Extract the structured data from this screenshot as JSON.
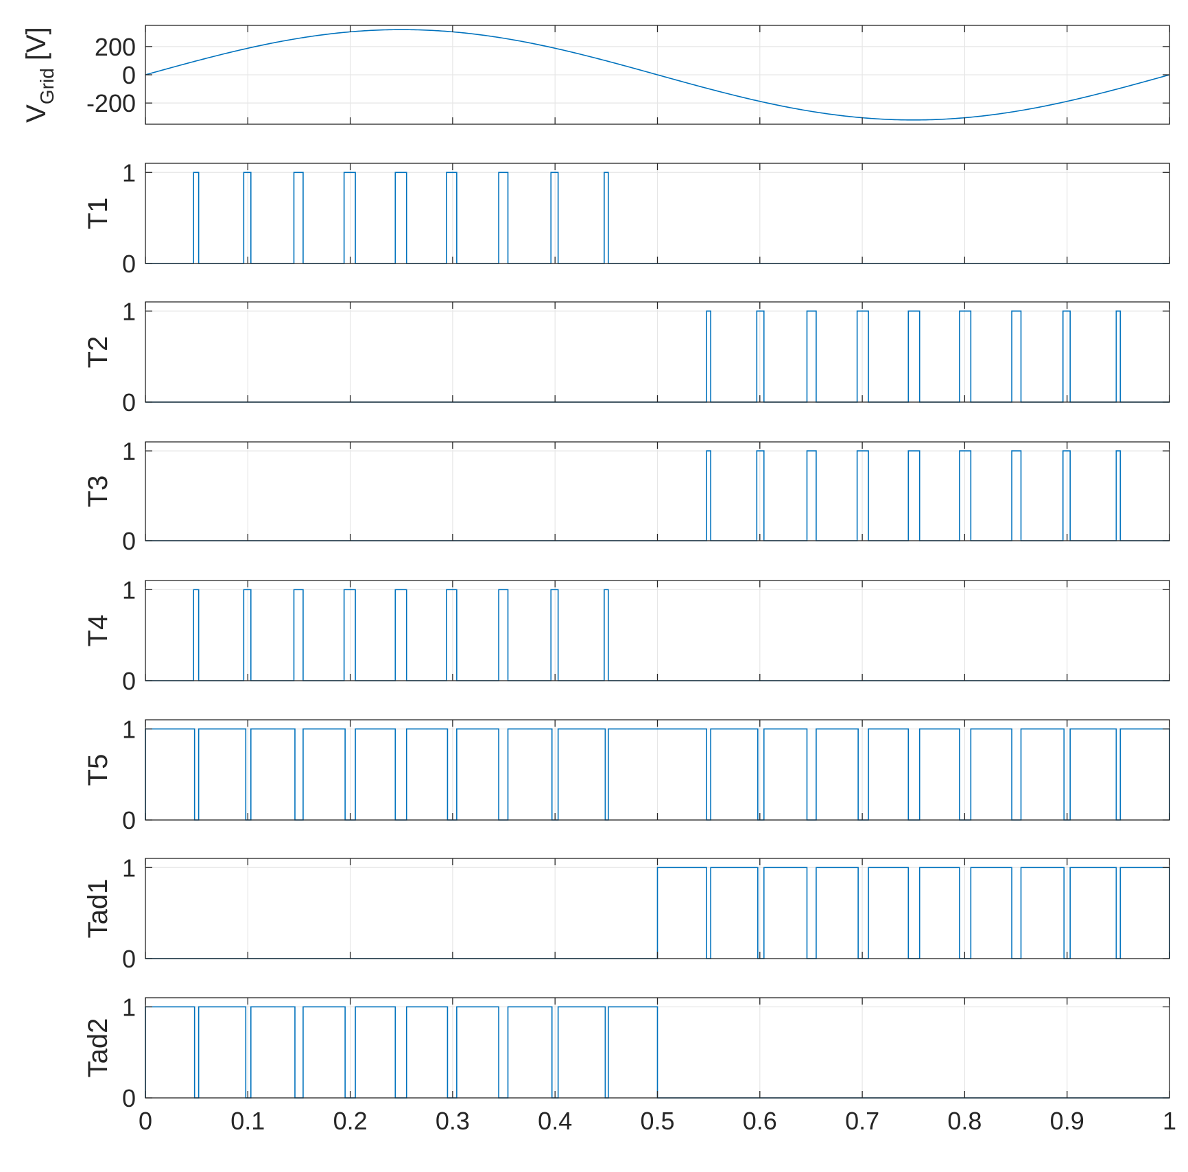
{
  "chart_data": {
    "type": "line",
    "series_color": "#0072BD",
    "grid": true,
    "xlim": [
      0,
      1
    ],
    "xticks": [
      0,
      0.1,
      0.2,
      0.3,
      0.4,
      0.5,
      0.6,
      0.7,
      0.8,
      0.9,
      1
    ],
    "xtick_labels": [
      "0",
      "0.1",
      "0.2",
      "0.3",
      "0.4",
      "0.5",
      "0.6",
      "0.7",
      "0.8",
      "0.9",
      "1"
    ],
    "panels": [
      {
        "id": "vgrid",
        "ylabel_main": "V",
        "ylabel_sub": "Grid",
        "ylabel_unit": " [V]",
        "ylim": [
          -350,
          350
        ],
        "yticks": [
          200,
          0,
          -200
        ],
        "ytick_labels": [
          "200",
          "0",
          "-200"
        ],
        "kind": "sine",
        "amplitude": 320,
        "frequency": 1
      },
      {
        "id": "t1",
        "ylabel_main": "T1",
        "ylim": [
          0,
          1.1
        ],
        "yticks": [
          1,
          0
        ],
        "ytick_labels": [
          "1",
          "0"
        ],
        "kind": "pulses",
        "pulses": [
          [
            0.047,
            0.052
          ],
          [
            0.096,
            0.103
          ],
          [
            0.145,
            0.154
          ],
          [
            0.194,
            0.205
          ],
          [
            0.244,
            0.255
          ],
          [
            0.294,
            0.304
          ],
          [
            0.345,
            0.354
          ],
          [
            0.396,
            0.403
          ],
          [
            0.448,
            0.452
          ]
        ]
      },
      {
        "id": "t2",
        "ylabel_main": "T2",
        "ylim": [
          0,
          1.1
        ],
        "yticks": [
          1,
          0
        ],
        "ytick_labels": [
          "1",
          "0"
        ],
        "kind": "pulses",
        "pulses": [
          [
            0.548,
            0.552
          ],
          [
            0.597,
            0.604
          ],
          [
            0.646,
            0.655
          ],
          [
            0.695,
            0.706
          ],
          [
            0.745,
            0.756
          ],
          [
            0.795,
            0.806
          ],
          [
            0.846,
            0.855
          ],
          [
            0.896,
            0.903
          ],
          [
            0.948,
            0.952
          ]
        ]
      },
      {
        "id": "t3",
        "ylabel_main": "T3",
        "ylim": [
          0,
          1.1
        ],
        "yticks": [
          1,
          0
        ],
        "ytick_labels": [
          "1",
          "0"
        ],
        "kind": "pulses",
        "pulses": [
          [
            0.548,
            0.552
          ],
          [
            0.597,
            0.604
          ],
          [
            0.646,
            0.655
          ],
          [
            0.695,
            0.706
          ],
          [
            0.745,
            0.756
          ],
          [
            0.795,
            0.806
          ],
          [
            0.846,
            0.855
          ],
          [
            0.896,
            0.903
          ],
          [
            0.948,
            0.952
          ]
        ]
      },
      {
        "id": "t4",
        "ylabel_main": "T4",
        "ylim": [
          0,
          1.1
        ],
        "yticks": [
          1,
          0
        ],
        "ytick_labels": [
          "1",
          "0"
        ],
        "kind": "pulses",
        "pulses": [
          [
            0.047,
            0.052
          ],
          [
            0.096,
            0.103
          ],
          [
            0.145,
            0.154
          ],
          [
            0.194,
            0.205
          ],
          [
            0.244,
            0.255
          ],
          [
            0.294,
            0.304
          ],
          [
            0.345,
            0.354
          ],
          [
            0.396,
            0.403
          ],
          [
            0.448,
            0.452
          ]
        ]
      },
      {
        "id": "t5",
        "ylabel_main": "T5",
        "ylim": [
          0,
          1.1
        ],
        "yticks": [
          1,
          0
        ],
        "ytick_labels": [
          "1",
          "0"
        ],
        "kind": "pulses",
        "pulses": [
          [
            0,
            0.048
          ],
          [
            0.052,
            0.098
          ],
          [
            0.103,
            0.146
          ],
          [
            0.154,
            0.195
          ],
          [
            0.205,
            0.244
          ],
          [
            0.255,
            0.295
          ],
          [
            0.304,
            0.345
          ],
          [
            0.354,
            0.397
          ],
          [
            0.403,
            0.449
          ],
          [
            0.452,
            0.548
          ],
          [
            0.552,
            0.598
          ],
          [
            0.604,
            0.646
          ],
          [
            0.655,
            0.696
          ],
          [
            0.706,
            0.745
          ],
          [
            0.756,
            0.795
          ],
          [
            0.806,
            0.846
          ],
          [
            0.855,
            0.897
          ],
          [
            0.903,
            0.948
          ],
          [
            0.952,
            1.0
          ]
        ]
      },
      {
        "id": "tad1",
        "ylabel_main": "Tad1",
        "ylim": [
          0,
          1.1
        ],
        "yticks": [
          1,
          0
        ],
        "ytick_labels": [
          "1",
          "0"
        ],
        "kind": "pulses",
        "pulses": [
          [
            0.5,
            0.548
          ],
          [
            0.552,
            0.598
          ],
          [
            0.604,
            0.646
          ],
          [
            0.655,
            0.696
          ],
          [
            0.706,
            0.745
          ],
          [
            0.756,
            0.795
          ],
          [
            0.806,
            0.846
          ],
          [
            0.855,
            0.897
          ],
          [
            0.903,
            0.948
          ],
          [
            0.952,
            1.0
          ]
        ]
      },
      {
        "id": "tad2",
        "ylabel_main": "Tad2",
        "ylim": [
          0,
          1.1
        ],
        "yticks": [
          1,
          0
        ],
        "ytick_labels": [
          "1",
          "0"
        ],
        "kind": "pulses",
        "pulses": [
          [
            0,
            0.048
          ],
          [
            0.052,
            0.098
          ],
          [
            0.103,
            0.146
          ],
          [
            0.154,
            0.195
          ],
          [
            0.205,
            0.244
          ],
          [
            0.255,
            0.295
          ],
          [
            0.304,
            0.345
          ],
          [
            0.354,
            0.397
          ],
          [
            0.403,
            0.449
          ],
          [
            0.452,
            0.5
          ]
        ]
      }
    ]
  }
}
